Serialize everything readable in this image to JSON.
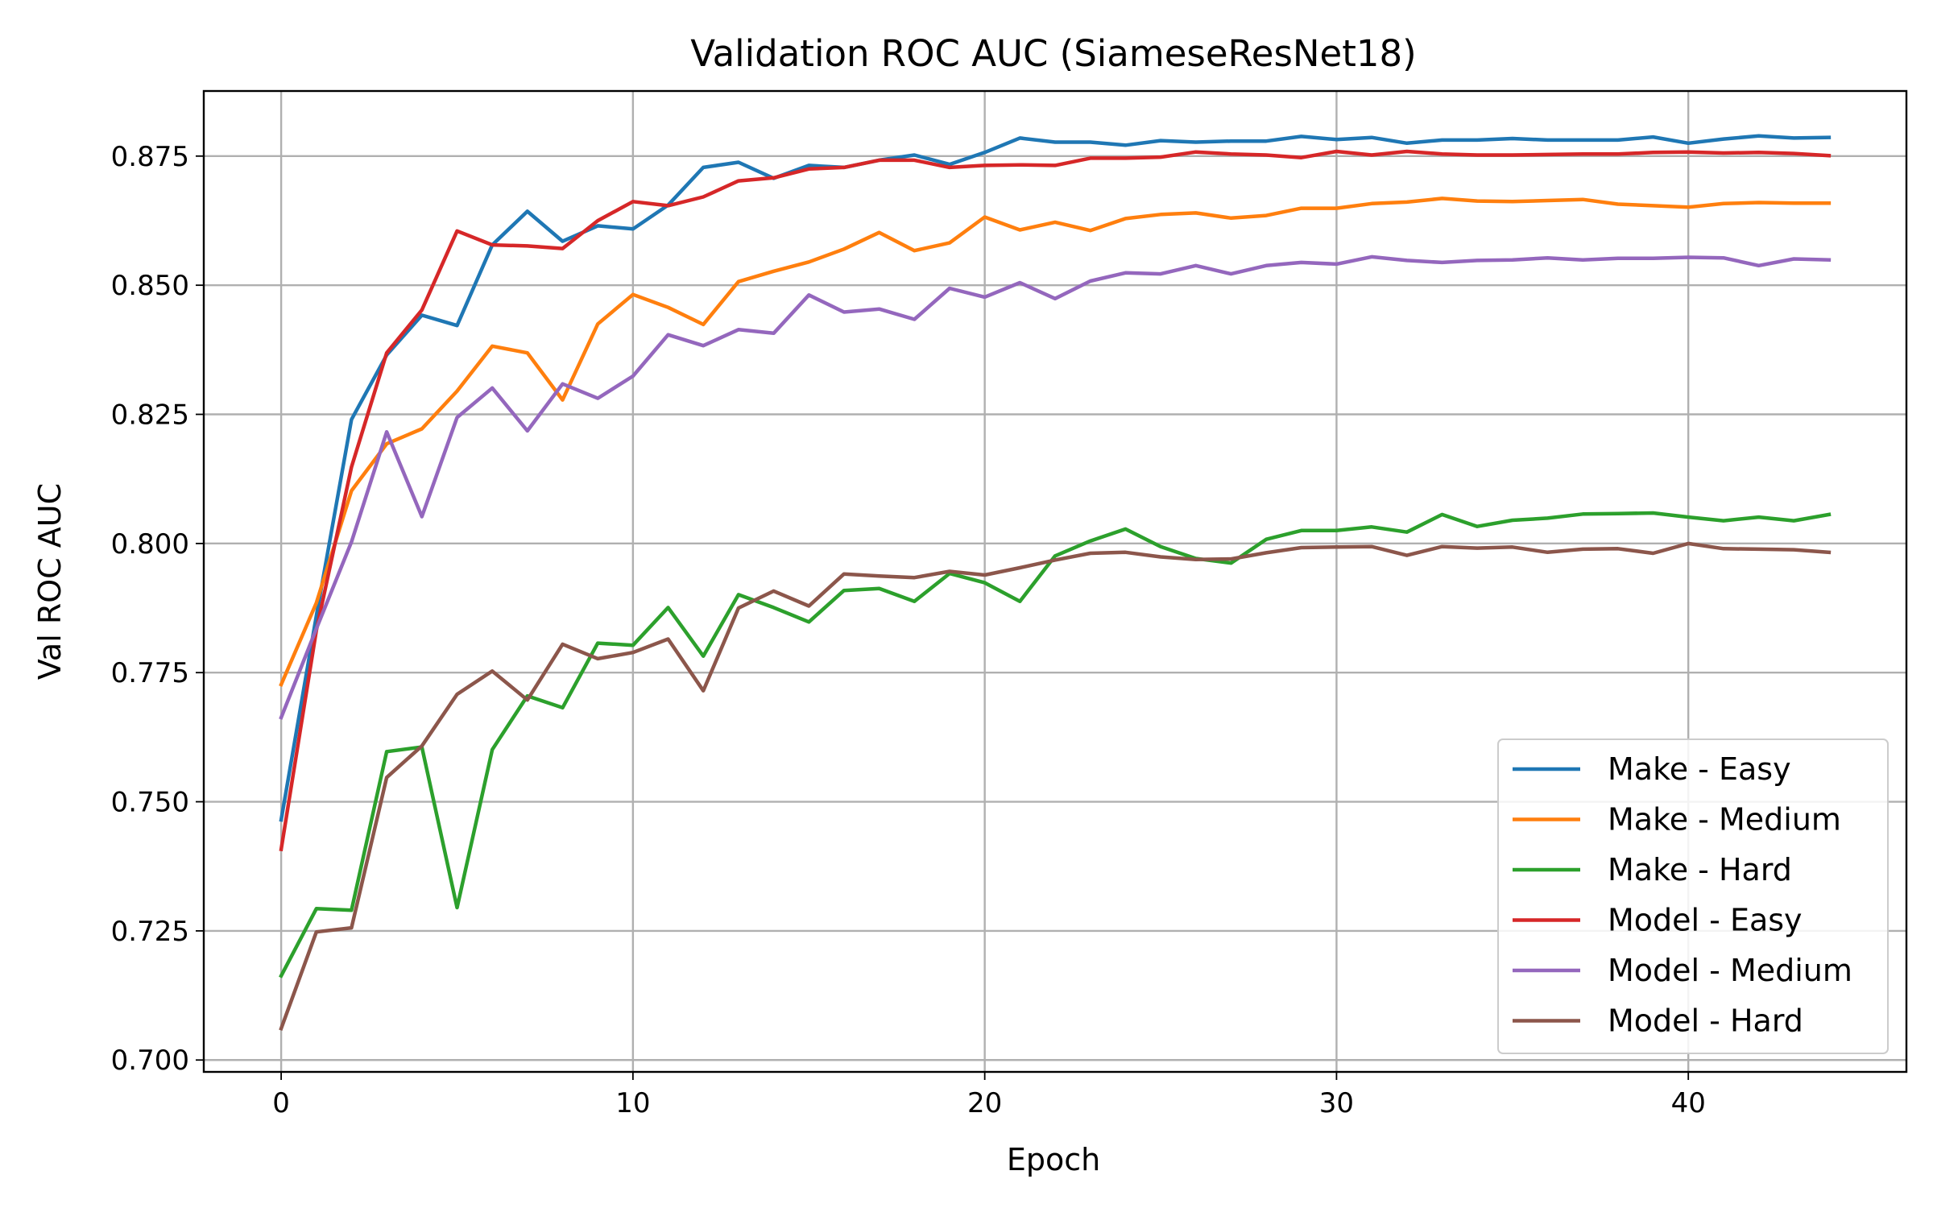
{
  "chart_data": {
    "type": "line",
    "title": "Validation ROC AUC (SiameseResNet18)",
    "xlabel": "Epoch",
    "ylabel": "Val ROC AUC",
    "xlim": [
      -2.2,
      46.2
    ],
    "ylim": [
      0.6977,
      0.8876
    ],
    "x_ticks": [
      "0",
      "10",
      "20",
      "30",
      "40"
    ],
    "x_tick_values": [
      0,
      10,
      20,
      30,
      40
    ],
    "y_ticks": [
      "0.700",
      "0.725",
      "0.750",
      "0.775",
      "0.800",
      "0.825",
      "0.850",
      "0.875"
    ],
    "y_tick_values": [
      0.7,
      0.725,
      0.75,
      0.775,
      0.8,
      0.825,
      0.85,
      0.875
    ],
    "grid": true,
    "legend_position": "lower-right",
    "x": [
      0,
      1,
      2,
      3,
      4,
      5,
      6,
      7,
      8,
      9,
      10,
      11,
      12,
      13,
      14,
      15,
      16,
      17,
      18,
      19,
      20,
      21,
      22,
      23,
      24,
      25,
      26,
      27,
      28,
      29,
      30,
      31,
      32,
      33,
      34,
      35,
      36,
      37,
      38,
      39,
      40,
      41,
      42,
      43,
      44
    ],
    "series": [
      {
        "name": "Make - Easy",
        "color": "#1f77b4",
        "values": [
          0.7465,
          0.786,
          0.824,
          0.8365,
          0.8442,
          0.8422,
          0.8578,
          0.8643,
          0.8585,
          0.8615,
          0.8609,
          0.8655,
          0.8728,
          0.8738,
          0.8707,
          0.8732,
          0.8728,
          0.8742,
          0.8752,
          0.8734,
          0.8757,
          0.8785,
          0.8777,
          0.8777,
          0.8771,
          0.878,
          0.8777,
          0.8779,
          0.8779,
          0.8788,
          0.8782,
          0.8786,
          0.8775,
          0.8781,
          0.8781,
          0.8784,
          0.8781,
          0.8781,
          0.8781,
          0.8787,
          0.8775,
          0.8783,
          0.8789,
          0.8785,
          0.8786
        ]
      },
      {
        "name": "Make - Medium",
        "color": "#ff7f0e",
        "values": [
          0.7727,
          0.7885,
          0.8102,
          0.8193,
          0.8222,
          0.8295,
          0.8382,
          0.8369,
          0.8278,
          0.8425,
          0.8482,
          0.8457,
          0.8424,
          0.8507,
          0.8527,
          0.8545,
          0.857,
          0.8602,
          0.8567,
          0.8582,
          0.8632,
          0.8607,
          0.8622,
          0.8606,
          0.8629,
          0.8637,
          0.864,
          0.863,
          0.8635,
          0.8649,
          0.8649,
          0.8658,
          0.8661,
          0.8668,
          0.8663,
          0.8662,
          0.8664,
          0.8666,
          0.8657,
          0.8654,
          0.8651,
          0.8658,
          0.866,
          0.8659,
          0.8659
        ]
      },
      {
        "name": "Make - Hard",
        "color": "#2ca02c",
        "values": [
          0.7163,
          0.7293,
          0.729,
          0.7597,
          0.7606,
          0.7295,
          0.7601,
          0.7705,
          0.7682,
          0.7807,
          0.7803,
          0.7876,
          0.7782,
          0.7901,
          0.7876,
          0.7848,
          0.7909,
          0.7913,
          0.7888,
          0.7942,
          0.7924,
          0.7888,
          0.7976,
          0.8005,
          0.8028,
          0.7994,
          0.7971,
          0.7962,
          0.8008,
          0.8025,
          0.8025,
          0.8032,
          0.8022,
          0.8056,
          0.8033,
          0.8045,
          0.8049,
          0.8057,
          0.8058,
          0.8059,
          0.8051,
          0.8044,
          0.8051,
          0.8044,
          0.8056
        ]
      },
      {
        "name": "Model - Easy",
        "color": "#d62728",
        "values": [
          0.7408,
          0.7832,
          0.8148,
          0.8369,
          0.8452,
          0.8605,
          0.8578,
          0.8576,
          0.8571,
          0.8625,
          0.8662,
          0.8654,
          0.8671,
          0.8702,
          0.8708,
          0.8725,
          0.8728,
          0.8742,
          0.8742,
          0.8728,
          0.8732,
          0.8733,
          0.8732,
          0.8746,
          0.8746,
          0.8748,
          0.8758,
          0.8754,
          0.8752,
          0.8747,
          0.8759,
          0.8752,
          0.8759,
          0.8754,
          0.8752,
          0.8752,
          0.8753,
          0.8754,
          0.8754,
          0.8757,
          0.8758,
          0.8756,
          0.8757,
          0.8755,
          0.8751
        ]
      },
      {
        "name": "Model - Medium",
        "color": "#9467bd",
        "values": [
          0.7663,
          0.7835,
          0.8003,
          0.8216,
          0.8052,
          0.8244,
          0.8301,
          0.8218,
          0.8309,
          0.8281,
          0.8324,
          0.8404,
          0.8383,
          0.8414,
          0.8407,
          0.8481,
          0.8448,
          0.8454,
          0.8434,
          0.8494,
          0.8477,
          0.8505,
          0.8474,
          0.8508,
          0.8524,
          0.8522,
          0.8538,
          0.8522,
          0.8538,
          0.8544,
          0.8541,
          0.8555,
          0.8548,
          0.8544,
          0.8548,
          0.8549,
          0.8553,
          0.8549,
          0.8552,
          0.8552,
          0.8554,
          0.8553,
          0.8538,
          0.8551,
          0.8549
        ]
      },
      {
        "name": "Model - Hard",
        "color": "#8c564b",
        "values": [
          0.7061,
          0.7248,
          0.7256,
          0.7547,
          0.7608,
          0.7708,
          0.7753,
          0.7697,
          0.7805,
          0.7777,
          0.7789,
          0.7815,
          0.7715,
          0.7875,
          0.7908,
          0.7879,
          0.7941,
          0.7937,
          0.7934,
          0.7946,
          0.7939,
          0.7953,
          0.7968,
          0.7981,
          0.7983,
          0.7974,
          0.7969,
          0.797,
          0.7982,
          0.7992,
          0.7993,
          0.7994,
          0.7977,
          0.7994,
          0.7991,
          0.7993,
          0.7983,
          0.7989,
          0.799,
          0.7981,
          0.8,
          0.799,
          0.7989,
          0.7988,
          0.7983
        ]
      }
    ]
  }
}
